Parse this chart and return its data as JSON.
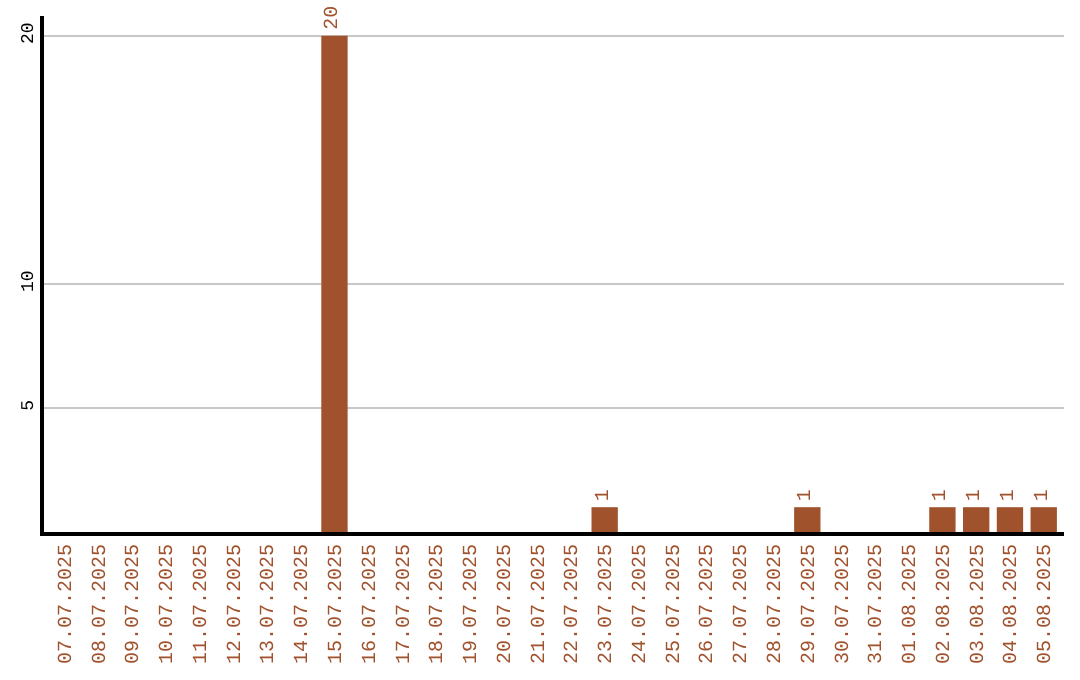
{
  "chart_data": {
    "type": "bar",
    "categories": [
      "07.07.2025",
      "08.07.2025",
      "09.07.2025",
      "10.07.2025",
      "11.07.2025",
      "12.07.2025",
      "13.07.2025",
      "14.07.2025",
      "15.07.2025",
      "16.07.2025",
      "17.07.2025",
      "18.07.2025",
      "19.07.2025",
      "20.07.2025",
      "21.07.2025",
      "22.07.2025",
      "23.07.2025",
      "24.07.2025",
      "25.07.2025",
      "26.07.2025",
      "27.07.2025",
      "28.07.2025",
      "29.07.2025",
      "30.07.2025",
      "31.07.2025",
      "01.08.2025",
      "02.08.2025",
      "03.08.2025",
      "04.08.2025",
      "05.08.2025"
    ],
    "values": [
      0,
      0,
      0,
      0,
      0,
      0,
      0,
      0,
      20,
      0,
      0,
      0,
      0,
      0,
      0,
      0,
      1,
      0,
      0,
      0,
      0,
      0,
      1,
      0,
      0,
      0,
      1,
      1,
      1,
      1
    ],
    "value_labels": [
      null,
      null,
      null,
      null,
      null,
      null,
      null,
      null,
      "20",
      null,
      null,
      null,
      null,
      null,
      null,
      null,
      "1",
      null,
      null,
      null,
      null,
      null,
      "1",
      null,
      null,
      null,
      "1",
      "1",
      "1",
      "1"
    ],
    "color": "#a0522d",
    "ylim": [
      0,
      20.8
    ],
    "yticks": [
      5,
      10,
      20
    ],
    "grid": "y"
  }
}
